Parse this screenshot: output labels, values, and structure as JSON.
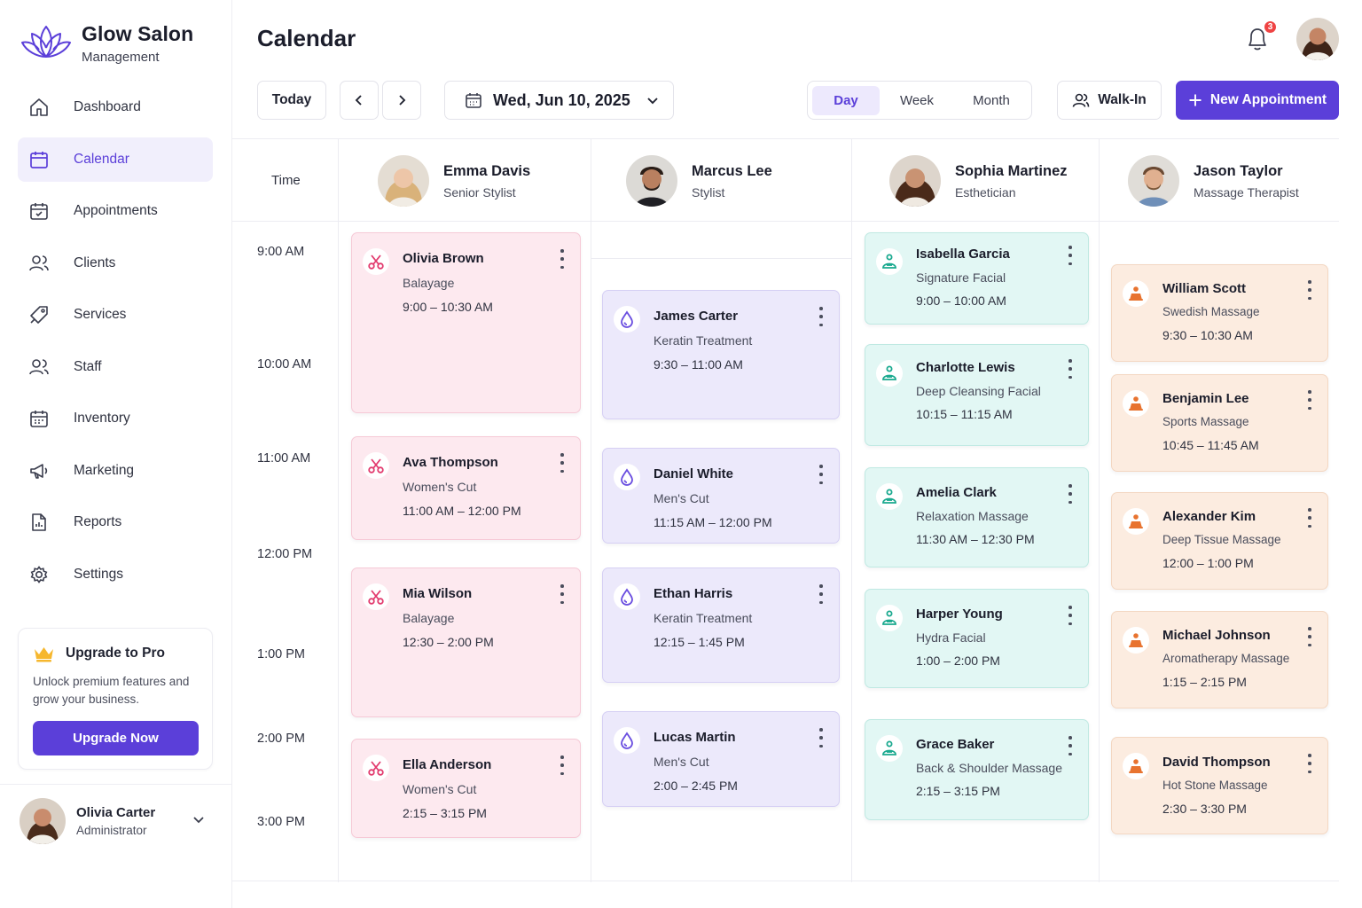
{
  "app": {
    "name": "Glow Salon",
    "subtitle": "Management"
  },
  "nav": {
    "items": [
      {
        "label": "Dashboard",
        "icon": "home-icon"
      },
      {
        "label": "Calendar",
        "icon": "calendar-icon",
        "active": true
      },
      {
        "label": "Appointments",
        "icon": "calendar-check-icon"
      },
      {
        "label": "Clients",
        "icon": "users-icon"
      },
      {
        "label": "Services",
        "icon": "tag-icon"
      },
      {
        "label": "Staff",
        "icon": "staff-icon"
      },
      {
        "label": "Inventory",
        "icon": "inventory-icon"
      },
      {
        "label": "Marketing",
        "icon": "megaphone-icon"
      },
      {
        "label": "Reports",
        "icon": "report-icon"
      },
      {
        "label": "Settings",
        "icon": "gear-icon"
      }
    ]
  },
  "upgrade": {
    "title": "Upgrade to Pro",
    "description": "Unlock premium features and grow your business.",
    "button": "Upgrade Now"
  },
  "user": {
    "name": "Olivia Carter",
    "role": "Administrator"
  },
  "header": {
    "title": "Calendar",
    "notification_count": "3"
  },
  "toolbar": {
    "today": "Today",
    "date": "Wed, Jun 10, 2025",
    "views": [
      "Day",
      "Week",
      "Month"
    ],
    "active_view": "Day",
    "walk_in": "Walk-In",
    "new_appointment": "New Appointment"
  },
  "calendar": {
    "time_header": "Time",
    "times": [
      "9:00 AM",
      "10:00 AM",
      "11:00 AM",
      "12:00 PM",
      "1:00 PM",
      "2:00 PM",
      "3:00 PM"
    ],
    "staff": [
      {
        "name": "Emma Davis",
        "role": "Senior Stylist"
      },
      {
        "name": "Marcus Lee",
        "role": "Stylist"
      },
      {
        "name": "Sophia Martinez",
        "role": "Esthetician"
      },
      {
        "name": "Jason Taylor",
        "role": "Massage Therapist"
      }
    ],
    "appointments": {
      "emma": [
        {
          "client": "Olivia Brown",
          "service": "Balayage",
          "time": "9:00 – 10:30 AM"
        },
        {
          "client": "Ava Thompson",
          "service": "Women's Cut",
          "time": "11:00 AM – 12:00 PM"
        },
        {
          "client": "Mia Wilson",
          "service": "Balayage",
          "time": "12:30 – 2:00 PM"
        },
        {
          "client": "Ella Anderson",
          "service": "Women's Cut",
          "time": "2:15 – 3:15 PM"
        }
      ],
      "marcus": [
        {
          "client": "James Carter",
          "service": "Keratin Treatment",
          "time": "9:30 – 11:00 AM"
        },
        {
          "client": "Daniel White",
          "service": "Men's Cut",
          "time": "11:15 AM – 12:00 PM"
        },
        {
          "client": "Ethan Harris",
          "service": "Keratin Treatment",
          "time": "12:15 – 1:45 PM"
        },
        {
          "client": "Lucas Martin",
          "service": "Men's Cut",
          "time": "2:00 – 2:45 PM"
        }
      ],
      "sophia": [
        {
          "client": "Isabella Garcia",
          "service": "Signature Facial",
          "time": "9:00 – 10:00 AM"
        },
        {
          "client": "Charlotte Lewis",
          "service": "Deep Cleansing Facial",
          "time": "10:15 – 11:15 AM"
        },
        {
          "client": "Amelia Clark",
          "service": "Relaxation Massage",
          "time": "11:30 AM – 12:30 PM"
        },
        {
          "client": "Harper Young",
          "service": "Hydra Facial",
          "time": "1:00 – 2:00 PM"
        },
        {
          "client": "Grace Baker",
          "service": "Back & Shoulder Massage",
          "time": "2:15 – 3:15 PM"
        }
      ],
      "jason": [
        {
          "client": "William Scott",
          "service": "Swedish Massage",
          "time": "9:30 – 10:30 AM"
        },
        {
          "client": "Benjamin Lee",
          "service": "Sports Massage",
          "time": "10:45 – 11:45 AM"
        },
        {
          "client": "Alexander Kim",
          "service": "Deep Tissue Massage",
          "time": "12:00 – 1:00 PM"
        },
        {
          "client": "Michael Johnson",
          "service": "Aromatherapy Massage",
          "time": "1:15 – 2:15 PM"
        },
        {
          "client": "David Thompson",
          "service": "Hot Stone Massage",
          "time": "2:30 – 3:30 PM"
        }
      ]
    }
  },
  "colors": {
    "accent": "#5b3fd9",
    "pink": "#fde9ef",
    "lavender": "#ece9fb",
    "mint": "#e2f7f4",
    "peach": "#fcece0"
  }
}
